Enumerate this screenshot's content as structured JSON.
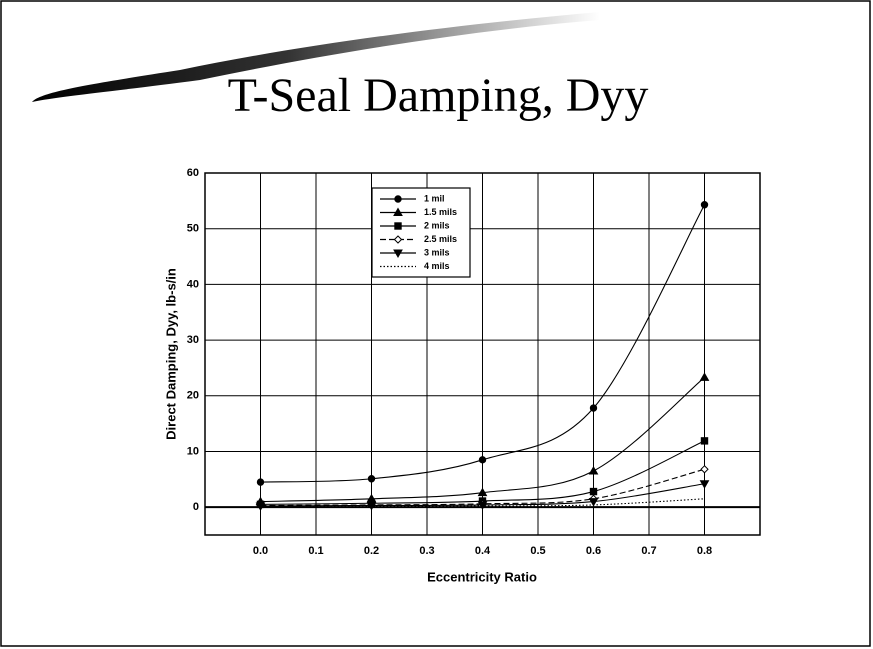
{
  "chart_data": {
    "type": "line",
    "title": "T-Seal Damping, Dyy",
    "x_label": "Eccentricity Ratio",
    "y_label": "Direct Damping, Dyy, lb-s/in",
    "x": [
      0,
      0.2,
      0.4,
      0.6,
      0.8
    ],
    "series": [
      {
        "name": "1 mil",
        "color": "#000000",
        "marker": "circle",
        "dash": "solid",
        "values": [
          4.5,
          5.1,
          8.5,
          17.8,
          54.3
        ]
      },
      {
        "name": "1.5 mils",
        "color": "#000000",
        "marker": "triangle",
        "dash": "solid",
        "values": [
          1.0,
          1.5,
          2.6,
          6.5,
          23.3
        ]
      },
      {
        "name": "2 mils",
        "color": "#000000",
        "marker": "square",
        "dash": "solid",
        "values": [
          0.5,
          0.7,
          1.1,
          2.8,
          11.9
        ]
      },
      {
        "name": "2.5 mils",
        "color": "#000000",
        "marker": "diamond",
        "dash": "dashed",
        "values": [
          0.3,
          0.4,
          0.6,
          1.5,
          6.8
        ]
      },
      {
        "name": "3 mils",
        "color": "#000000",
        "marker": "triangle-down",
        "dash": "solid",
        "values": [
          0.2,
          0.3,
          0.4,
          1.0,
          4.2
        ]
      },
      {
        "name": "4 mils",
        "color": "#000000",
        "marker": "none",
        "dash": "dotted",
        "values": [
          0.1,
          0.1,
          0.2,
          0.4,
          1.5
        ]
      }
    ],
    "xlim": [
      -0.1,
      0.9
    ],
    "xticks": [
      {
        "value": 0,
        "label": "0.0"
      },
      0.1,
      0.2,
      0.3,
      0.4,
      0.5,
      0.6,
      0.7,
      0.8
    ],
    "ylim": [
      -5,
      60
    ],
    "yticks": [
      0,
      10,
      20,
      30,
      40,
      50,
      60
    ],
    "grid": true,
    "legend": "top"
  }
}
